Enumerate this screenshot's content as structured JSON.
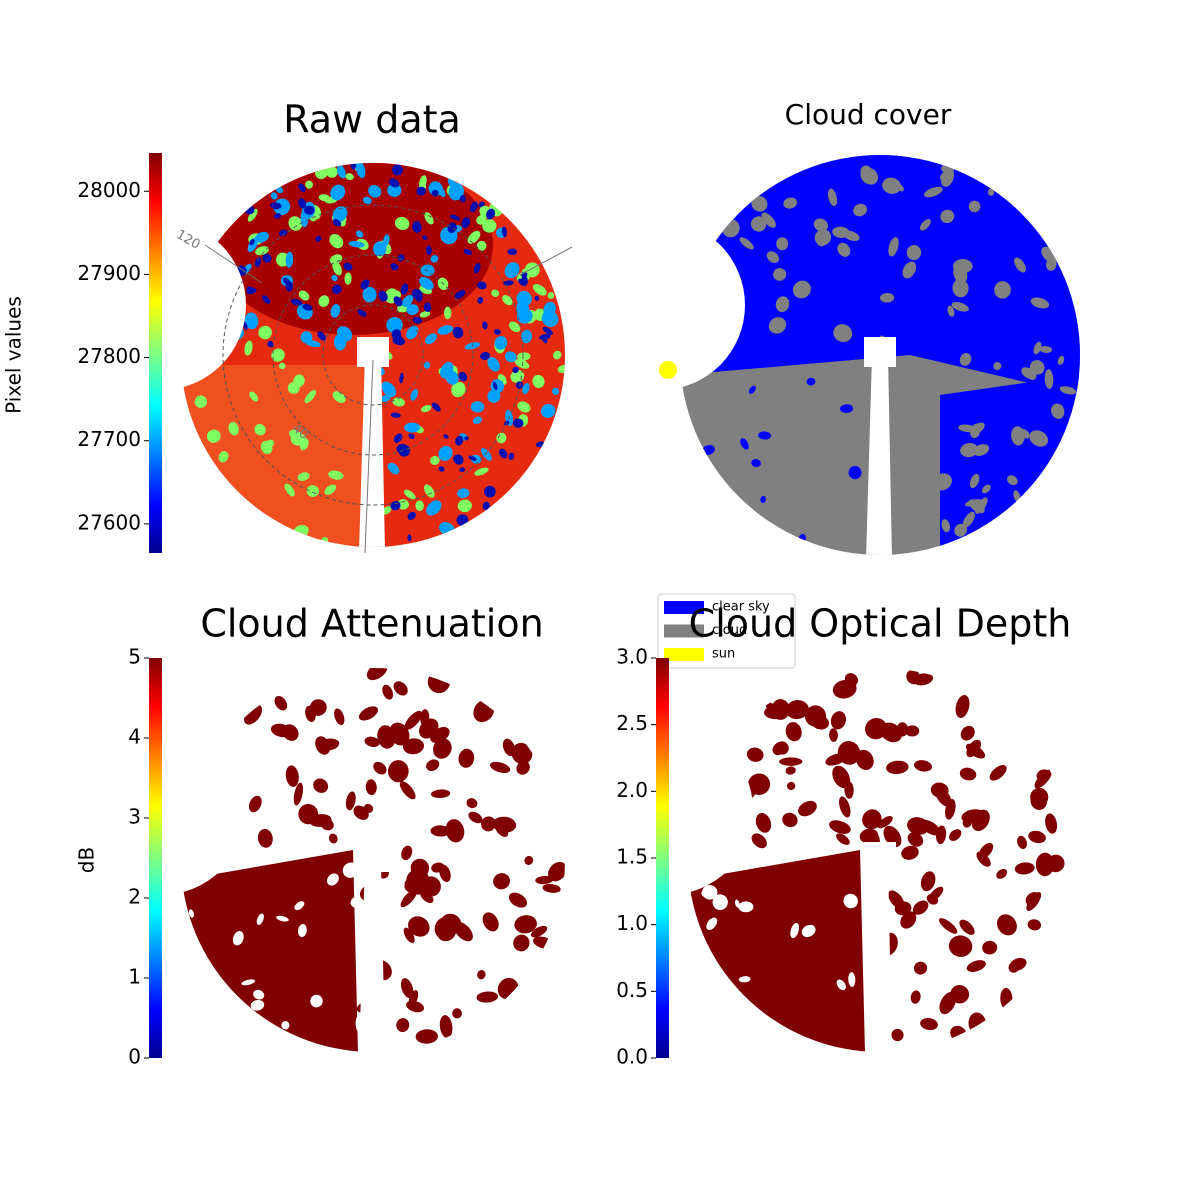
{
  "chart_data": [
    {
      "type": "image",
      "title": "Raw data",
      "colorbar_label": "Pixel values",
      "colormap": "jet",
      "ylim": [
        27565,
        28046
      ],
      "yticks": [
        27600,
        27700,
        27800,
        27900,
        28000
      ],
      "annotations": [
        "120",
        "40"
      ]
    },
    {
      "type": "image",
      "title": "Cloud cover",
      "legend": [
        {
          "name": "clear sky",
          "color": "#0000ff"
        },
        {
          "name": "cloud",
          "color": "#808080"
        },
        {
          "name": "sun",
          "color": "#ffff00"
        }
      ]
    },
    {
      "type": "image",
      "title": "Cloud Attenuation",
      "colorbar_label": "dB",
      "colormap": "jet",
      "ylim": [
        0,
        5
      ],
      "yticks": [
        0,
        1,
        2,
        3,
        4,
        5
      ]
    },
    {
      "type": "image",
      "title": "Cloud Optical Depth",
      "colormap": "jet",
      "ylim": [
        0,
        3
      ],
      "yticks": [
        {
          "value": 0,
          "label": "0.0"
        },
        0.5,
        {
          "value": 1,
          "label": "1.0"
        },
        1.5,
        {
          "value": 2,
          "label": "2.0"
        },
        2.5,
        {
          "value": 3,
          "label": "3.0"
        }
      ]
    }
  ]
}
